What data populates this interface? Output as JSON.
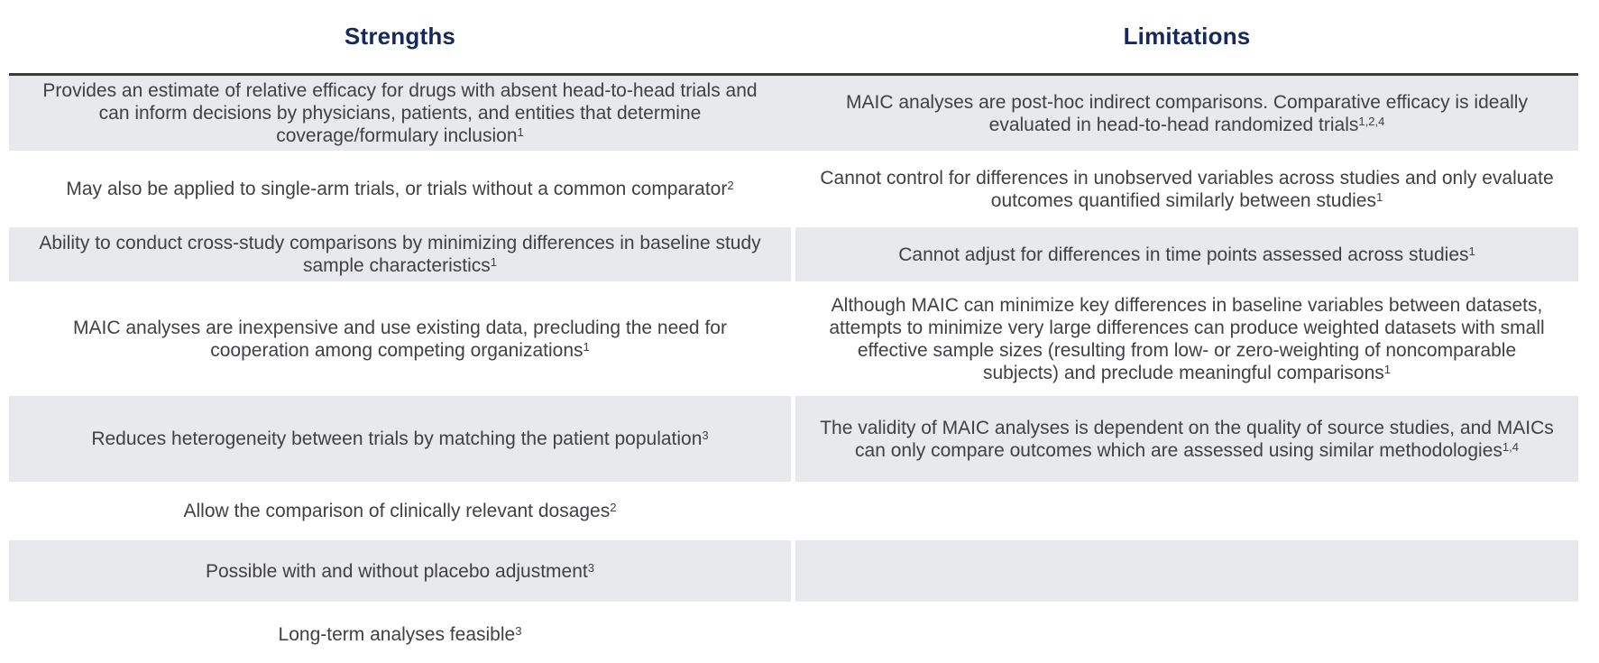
{
  "colors": {
    "header_text": "#17285c",
    "body_text": "#414044",
    "row_shade": "#e8e9ed",
    "divider": "#3a3a3a",
    "background": "#ffffff"
  },
  "table": {
    "headers": {
      "strengths": "Strengths",
      "limitations": "Limitations"
    },
    "rows": [
      {
        "strengths": {
          "text": "Provides an estimate of relative efficacy for drugs with absent head-to-head trials and can inform decisions by physicians, patients, and entities that determine coverage/formulary inclusion",
          "refs": "1"
        },
        "limitations": {
          "text": "MAIC analyses are post-hoc indirect comparisons. Comparative efficacy is ideally evaluated in head-to-head randomized trials",
          "refs": "1,2,4"
        }
      },
      {
        "strengths": {
          "text": "May also be applied to single-arm trials, or trials without a common comparator",
          "refs": "2"
        },
        "limitations": {
          "text": "Cannot control for differences in unobserved variables across studies and only evaluate outcomes quantified similarly between studies",
          "refs": "1"
        }
      },
      {
        "strengths": {
          "text": "Ability to conduct cross-study comparisons by minimizing differences in baseline study sample characteristics",
          "refs": "1"
        },
        "limitations": {
          "text": "Cannot adjust for differences in time points assessed across studies",
          "refs": "1"
        }
      },
      {
        "strengths": {
          "text": "MAIC analyses are inexpensive and use existing data, precluding the need for cooperation among competing organizations",
          "refs": "1"
        },
        "limitations": {
          "text": "Although MAIC can minimize key differences in baseline variables between datasets, attempts to minimize very large differences can produce weighted datasets with small effective sample sizes (resulting from low- or zero-weighting of noncomparable subjects) and preclude meaningful comparisons",
          "refs": "1"
        }
      },
      {
        "strengths": {
          "text": "Reduces heterogeneity between trials by matching the patient population",
          "refs": "3"
        },
        "limitations": {
          "text": "The validity of MAIC analyses is dependent on the quality of source studies, and MAICs can only compare outcomes which are assessed using similar methodologies",
          "refs": "1,4"
        }
      },
      {
        "strengths": {
          "text": "Allow the comparison of clinically relevant dosages",
          "refs": "2"
        },
        "limitations": {
          "text": "",
          "refs": ""
        }
      },
      {
        "strengths": {
          "text": "Possible with and without placebo adjustment",
          "refs": "3"
        },
        "limitations": {
          "text": "",
          "refs": ""
        }
      },
      {
        "strengths": {
          "text": "Long-term analyses feasible",
          "refs": "3"
        },
        "limitations": {
          "text": "",
          "refs": ""
        }
      }
    ]
  }
}
